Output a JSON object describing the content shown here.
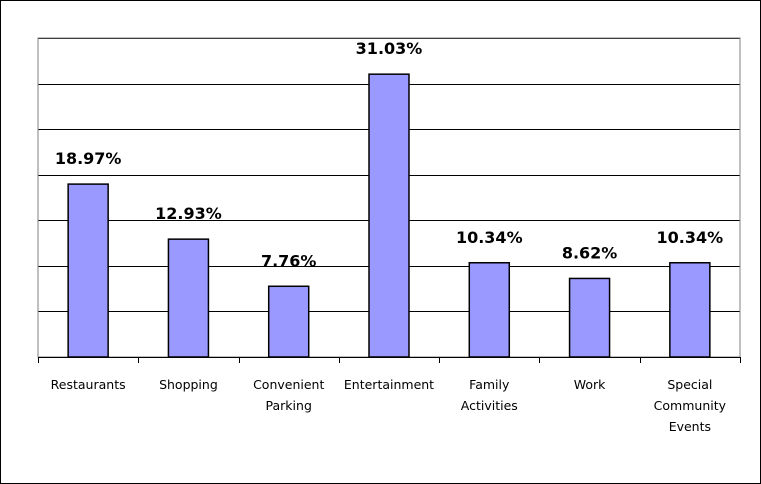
{
  "chart_data": {
    "type": "bar",
    "categories": [
      [
        "Restaurants"
      ],
      [
        "Shopping"
      ],
      [
        "Convenient",
        "Parking"
      ],
      [
        "Entertainment"
      ],
      [
        "Family",
        "Activities"
      ],
      [
        "Work"
      ],
      [
        "Special",
        "Community",
        "Events"
      ]
    ],
    "values": [
      18.97,
      12.93,
      7.76,
      31.03,
      10.34,
      8.62,
      10.34
    ],
    "data_labels": [
      "18.97%",
      "12.93%",
      "7.76%",
      "31.03%",
      "10.34%",
      "8.62%",
      "10.34%"
    ],
    "ylim": [
      0,
      35
    ],
    "gridlines": [
      5,
      10,
      15,
      20,
      25,
      30,
      35
    ],
    "grid": true,
    "legend": "none",
    "bar_color": "#9999ff",
    "bar_edge_color": "#000000",
    "title": "",
    "xlabel": "",
    "ylabel": ""
  }
}
